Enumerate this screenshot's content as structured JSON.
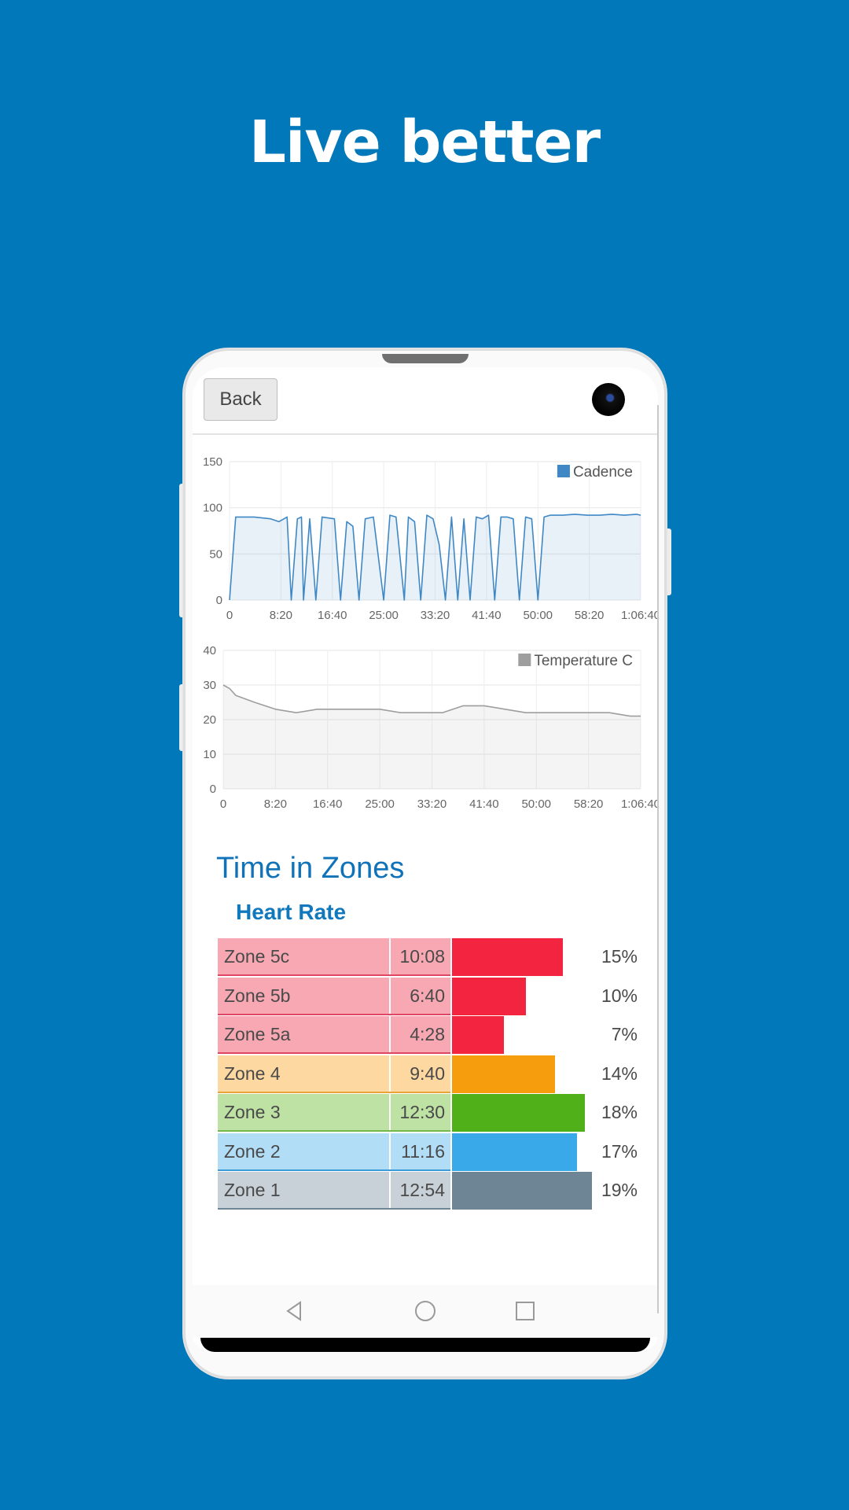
{
  "headline": "Live better",
  "header": {
    "back_label": "Back"
  },
  "cadence_chart": {
    "legend": "Cadence",
    "color": "#3f88c5",
    "y_ticks": [
      "150",
      "100",
      "50",
      "0"
    ],
    "x_ticks": [
      "0",
      "8:20",
      "16:40",
      "25:00",
      "33:20",
      "41:40",
      "50:00",
      "58:20",
      "1:06:40"
    ]
  },
  "temp_chart": {
    "legend": "Temperature C",
    "color": "#9e9e9e",
    "y_ticks": [
      "40",
      "30",
      "20",
      "10",
      "0"
    ],
    "x_ticks": [
      "0",
      "8:20",
      "16:40",
      "25:00",
      "33:20",
      "41:40",
      "50:00",
      "58:20",
      "1:06:40"
    ]
  },
  "chart_data": [
    {
      "type": "line",
      "series": [
        {
          "name": "Cadence",
          "values_note_free": true,
          "x": [
            0,
            60,
            120,
            240,
            400,
            480,
            560,
            600,
            660,
            700,
            720,
            780,
            840,
            900,
            1020,
            1080,
            1140,
            1200,
            1260,
            1320,
            1400,
            1500,
            1560,
            1620,
            1700,
            1740,
            1800,
            1860,
            1920,
            1980,
            2040,
            2100,
            2160,
            2220,
            2280,
            2340,
            2400,
            2460,
            2520,
            2580,
            2640,
            2700,
            2760,
            2820,
            2880,
            2940,
            3000,
            3060,
            3120,
            3240,
            3360,
            3480,
            3600,
            3720,
            3840,
            3960,
            4000
          ],
          "y": [
            0,
            90,
            90,
            90,
            88,
            85,
            90,
            0,
            88,
            90,
            0,
            88,
            0,
            90,
            88,
            0,
            85,
            80,
            0,
            88,
            90,
            0,
            92,
            90,
            0,
            90,
            85,
            0,
            92,
            88,
            60,
            0,
            90,
            0,
            88,
            0,
            90,
            88,
            92,
            0,
            90,
            90,
            88,
            0,
            90,
            88,
            0,
            90,
            92,
            92,
            93,
            92,
            92,
            93,
            92,
            93,
            92
          ]
        }
      ],
      "xlabel": "",
      "ylabel": "",
      "x_range": [
        "0",
        "1:06:40"
      ],
      "ylim": [
        0,
        150
      ]
    },
    {
      "type": "area",
      "series": [
        {
          "name": "Temperature C",
          "x": [
            0,
            60,
            120,
            300,
            500,
            700,
            900,
            1100,
            1300,
            1500,
            1700,
            1900,
            2100,
            2300,
            2500,
            2700,
            2900,
            3100,
            3300,
            3500,
            3700,
            3900,
            4000
          ],
          "y": [
            30,
            29,
            27,
            25,
            23,
            22,
            23,
            23,
            23,
            23,
            22,
            22,
            22,
            24,
            24,
            23,
            22,
            22,
            22,
            22,
            22,
            21,
            21
          ]
        }
      ],
      "xlabel": "",
      "ylabel": "",
      "x_range": [
        "0",
        "1:06:40"
      ],
      "ylim": [
        0,
        40
      ]
    },
    {
      "type": "bar",
      "title": "Time in Zones",
      "subtitle": "Heart Rate",
      "categories": [
        "Zone 5c",
        "Zone 5b",
        "Zone 5a",
        "Zone 4",
        "Zone 3",
        "Zone 2",
        "Zone 1"
      ],
      "times": [
        "10:08",
        "6:40",
        "4:28",
        "9:40",
        "12:30",
        "11:16",
        "12:54"
      ],
      "values": [
        15,
        10,
        7,
        14,
        18,
        17,
        19
      ]
    }
  ],
  "zones": {
    "title": "Time in Zones",
    "subtitle": "Heart Rate",
    "rows": [
      {
        "name": "Zone 5c",
        "time": "10:08",
        "pct_label": "15%",
        "pct": 15,
        "light": "#f7a8b3",
        "dark": "#f3243f",
        "line": "#e04563"
      },
      {
        "name": "Zone 5b",
        "time": "6:40",
        "pct_label": "10%",
        "pct": 10,
        "light": "#f7a8b3",
        "dark": "#f3243f",
        "line": "#e04563"
      },
      {
        "name": "Zone 5a",
        "time": "4:28",
        "pct_label": "7%",
        "pct": 7,
        "light": "#f7a8b3",
        "dark": "#f3243f",
        "line": "#e04563"
      },
      {
        "name": "Zone 4",
        "time": "9:40",
        "pct_label": "14%",
        "pct": 14,
        "light": "#fdd8a0",
        "dark": "#f59d0d",
        "line": "#e8a438"
      },
      {
        "name": "Zone 3",
        "time": "12:30",
        "pct_label": "18%",
        "pct": 18,
        "light": "#bde2a3",
        "dark": "#4fb01a",
        "line": "#72b84b"
      },
      {
        "name": "Zone 2",
        "time": "11:16",
        "pct_label": "17%",
        "pct": 17,
        "light": "#b2ddf6",
        "dark": "#3aa9ea",
        "line": "#3b9ad8"
      },
      {
        "name": "Zone 1",
        "time": "12:54",
        "pct_label": "19%",
        "pct": 19,
        "light": "#c8d0d8",
        "dark": "#6e8595",
        "line": "#6e8595"
      }
    ]
  },
  "navbar": {
    "icons": [
      "back-icon",
      "home-icon",
      "recents-icon"
    ]
  }
}
